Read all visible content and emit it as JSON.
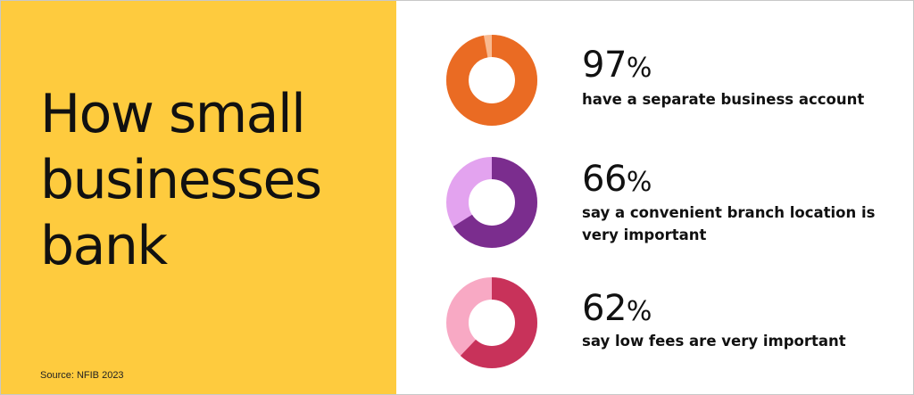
{
  "title": "How small businesses bank",
  "source": "Source: NFIB 2023",
  "chart_data": [
    {
      "type": "pie",
      "value": 97,
      "value_label": "97",
      "unit": "%",
      "label": "have a separate business account",
      "colors": {
        "main": "#ea6b23",
        "rest": "#f9b98f"
      }
    },
    {
      "type": "pie",
      "value": 66,
      "value_label": "66",
      "unit": "%",
      "label": "say a convenient branch location is very important",
      "colors": {
        "main": "#7b2d8e",
        "rest": "#e3a3ef"
      }
    },
    {
      "type": "pie",
      "value": 62,
      "value_label": "62",
      "unit": "%",
      "label": "say low fees are very important",
      "colors": {
        "main": "#c8325a",
        "rest": "#f8a9c4"
      }
    }
  ]
}
